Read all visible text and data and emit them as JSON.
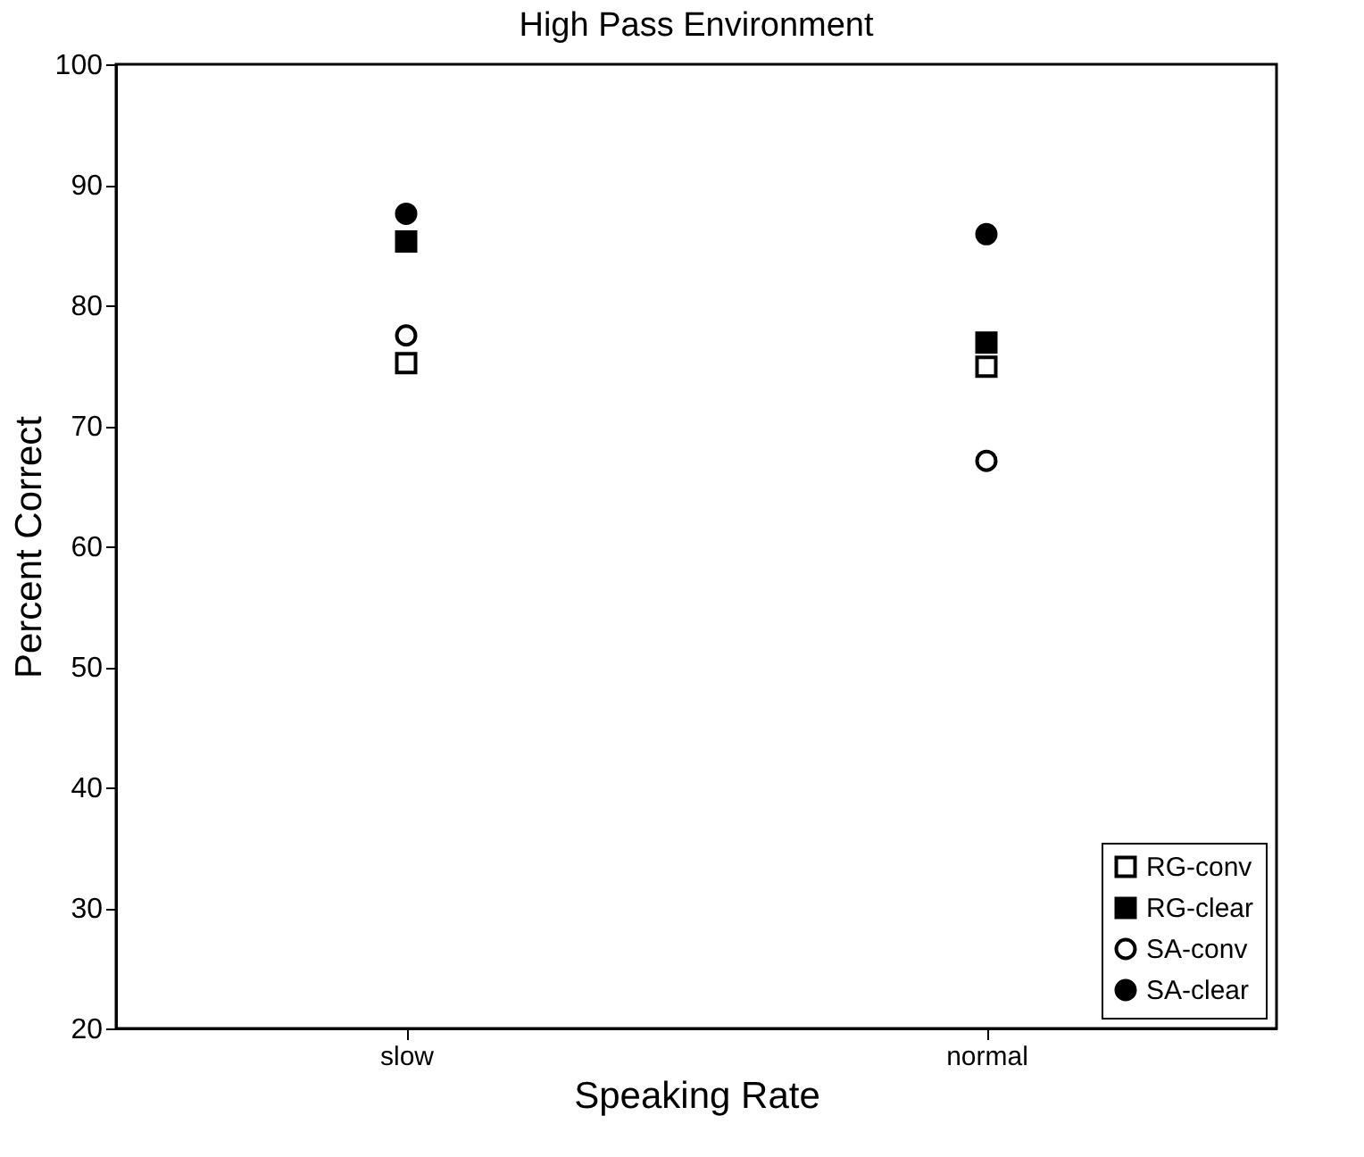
{
  "chart_data": {
    "type": "scatter",
    "title": "High Pass Environment",
    "xlabel": "Speaking Rate",
    "ylabel": "Percent Correct",
    "categories": [
      "slow",
      "normal"
    ],
    "series": [
      {
        "name": "RG-conv",
        "color": "#ffffff",
        "marker": "square",
        "values": [
          75.2,
          74.9
        ]
      },
      {
        "name": "RG-clear",
        "color": "#000000",
        "marker": "square",
        "values": [
          85.3,
          76.9
        ]
      },
      {
        "name": "SA-conv",
        "color": "#ffffff",
        "marker": "circle",
        "values": [
          77.5,
          67.1
        ]
      },
      {
        "name": "SA-clear",
        "color": "#000000",
        "marker": "circle",
        "values": [
          87.6,
          85.9
        ]
      }
    ],
    "ylim": [
      20,
      100
    ],
    "yticks": [
      20,
      30,
      40,
      50,
      60,
      70,
      80,
      90,
      100
    ],
    "grid": false,
    "legend": "bottom right"
  }
}
